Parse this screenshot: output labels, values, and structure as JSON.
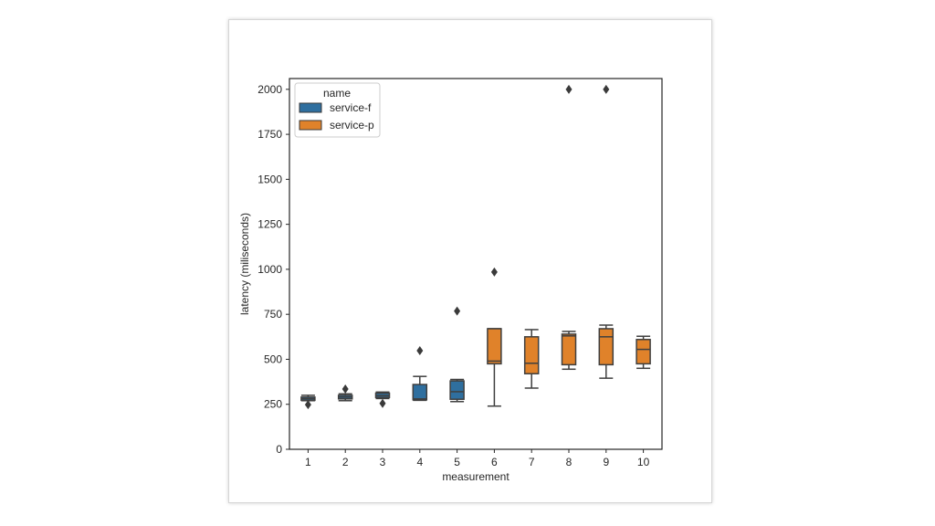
{
  "chart_data": {
    "type": "box",
    "xlabel": "measurement",
    "ylabel": "latency (miliseconds)",
    "ylim": [
      0,
      2060
    ],
    "yticks": [
      0,
      250,
      500,
      750,
      1000,
      1250,
      1500,
      1750,
      2000
    ],
    "categories": [
      "1",
      "2",
      "3",
      "4",
      "5",
      "6",
      "7",
      "8",
      "9",
      "10"
    ],
    "grid": false,
    "legend": {
      "title": "name",
      "placement": "top-left",
      "entries": [
        {
          "name": "service-f",
          "color": "#2f6f9f"
        },
        {
          "name": "service-p",
          "color": "#e0822a"
        }
      ]
    },
    "boxes": [
      {
        "category": "1",
        "series": "service-f",
        "whisker_low": 270,
        "q1": 272,
        "median": 281,
        "q3": 290,
        "whisker_high": 300,
        "outliers": [
          248
        ]
      },
      {
        "category": "2",
        "series": "service-f",
        "whisker_low": 270,
        "q1": 280,
        "median": 290,
        "q3": 300,
        "whisker_high": 308,
        "outliers": [
          335
        ]
      },
      {
        "category": "3",
        "series": "service-f",
        "whisker_low": 282,
        "q1": 288,
        "median": 298,
        "q3": 312,
        "whisker_high": 318,
        "outliers": [
          255
        ]
      },
      {
        "category": "4",
        "series": "service-f",
        "whisker_low": 272,
        "q1": 275,
        "median": 280,
        "q3": 360,
        "whisker_high": 405,
        "outliers": [
          548
        ]
      },
      {
        "category": "5",
        "series": "service-f",
        "whisker_low": 265,
        "q1": 278,
        "median": 320,
        "q3": 380,
        "whisker_high": 388,
        "outliers": [
          768
        ]
      },
      {
        "category": "6",
        "series": "service-p",
        "whisker_low": 240,
        "q1": 475,
        "median": 490,
        "q3": 670,
        "whisker_high": 670,
        "outliers": [
          985
        ]
      },
      {
        "category": "7",
        "series": "service-p",
        "whisker_low": 340,
        "q1": 420,
        "median": 478,
        "q3": 625,
        "whisker_high": 665,
        "outliers": []
      },
      {
        "category": "8",
        "series": "service-p",
        "whisker_low": 445,
        "q1": 470,
        "median": 630,
        "q3": 640,
        "whisker_high": 655,
        "outliers": [
          2000
        ]
      },
      {
        "category": "9",
        "series": "service-p",
        "whisker_low": 395,
        "q1": 470,
        "median": 625,
        "q3": 670,
        "whisker_high": 690,
        "outliers": [
          2000
        ]
      },
      {
        "category": "10",
        "series": "service-p",
        "whisker_low": 450,
        "q1": 475,
        "median": 555,
        "q3": 610,
        "whisker_high": 628,
        "outliers": []
      }
    ]
  }
}
